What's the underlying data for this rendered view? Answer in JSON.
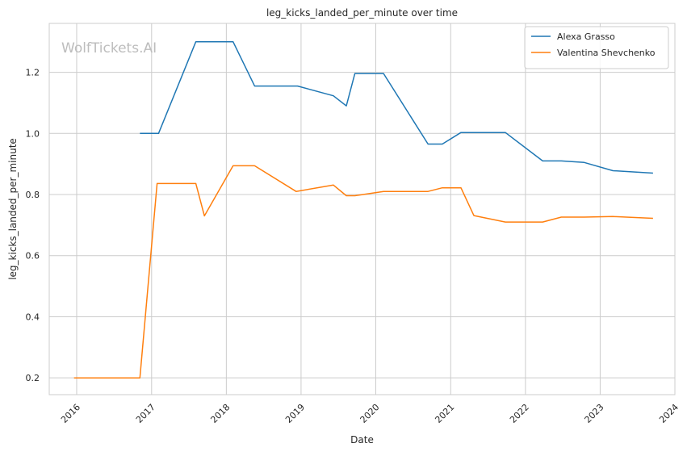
{
  "watermark": "WolfTickets.AI",
  "chart_data": {
    "type": "line",
    "title": "leg_kicks_landed_per_minute over time",
    "xlabel": "Date",
    "ylabel": "leg_kicks_landed_per_minute",
    "x_is_date": true,
    "xlim": [
      "2015-08-20",
      "2024-01-01"
    ],
    "ylim": [
      0.145,
      1.36
    ],
    "x_ticks": [
      {
        "date": "2016-01-01",
        "label": "2016"
      },
      {
        "date": "2017-01-01",
        "label": "2017"
      },
      {
        "date": "2018-01-01",
        "label": "2018"
      },
      {
        "date": "2019-01-01",
        "label": "2019"
      },
      {
        "date": "2020-01-01",
        "label": "2020"
      },
      {
        "date": "2021-01-01",
        "label": "2021"
      },
      {
        "date": "2022-01-01",
        "label": "2022"
      },
      {
        "date": "2023-01-01",
        "label": "2023"
      },
      {
        "date": "2024-01-01",
        "label": "2024"
      }
    ],
    "y_ticks": [
      {
        "value": 0.2,
        "label": "0.2"
      },
      {
        "value": 0.4,
        "label": "0.4"
      },
      {
        "value": 0.6,
        "label": "0.6"
      },
      {
        "value": 0.8,
        "label": "0.8"
      },
      {
        "value": 1.0,
        "label": "1.0"
      },
      {
        "value": 1.2,
        "label": "1.2"
      }
    ],
    "grid": true,
    "legend_position": "top-right",
    "series": [
      {
        "name": "Alexa Grasso",
        "color": "#1f77b4",
        "points": [
          [
            "2016-11-05",
            1.0
          ],
          [
            "2017-02-04",
            1.0
          ],
          [
            "2017-08-05",
            1.3
          ],
          [
            "2018-02-03",
            1.3
          ],
          [
            "2018-05-19",
            1.155
          ],
          [
            "2018-12-15",
            1.155
          ],
          [
            "2019-06-08",
            1.123
          ],
          [
            "2019-08-10",
            1.09
          ],
          [
            "2019-09-21",
            1.196
          ],
          [
            "2020-02-08",
            1.196
          ],
          [
            "2020-09-12",
            0.965
          ],
          [
            "2020-11-21",
            0.965
          ],
          [
            "2021-02-20",
            1.003
          ],
          [
            "2021-09-25",
            1.003
          ],
          [
            "2022-03-26",
            0.91
          ],
          [
            "2022-06-25",
            0.91
          ],
          [
            "2022-10-15",
            0.905
          ],
          [
            "2023-03-04",
            0.878
          ],
          [
            "2023-09-16",
            0.87
          ]
        ]
      },
      {
        "name": "Valentina Shevchenko",
        "color": "#ff7f0e",
        "points": [
          [
            "2015-12-19",
            0.2
          ],
          [
            "2016-11-05",
            0.2
          ],
          [
            "2017-01-28",
            0.836
          ],
          [
            "2017-08-05",
            0.836
          ],
          [
            "2017-09-16",
            0.73
          ],
          [
            "2018-02-03",
            0.894
          ],
          [
            "2018-05-19",
            0.894
          ],
          [
            "2018-12-08",
            0.81
          ],
          [
            "2019-06-08",
            0.831
          ],
          [
            "2019-08-10",
            0.796
          ],
          [
            "2019-09-21",
            0.796
          ],
          [
            "2020-02-08",
            0.81
          ],
          [
            "2020-09-12",
            0.81
          ],
          [
            "2020-11-21",
            0.822
          ],
          [
            "2021-02-20",
            0.822
          ],
          [
            "2021-04-24",
            0.731
          ],
          [
            "2021-09-25",
            0.71
          ],
          [
            "2022-03-26",
            0.71
          ],
          [
            "2022-06-25",
            0.726
          ],
          [
            "2022-10-15",
            0.726
          ],
          [
            "2023-03-04",
            0.728
          ],
          [
            "2023-09-16",
            0.722
          ]
        ]
      }
    ]
  }
}
